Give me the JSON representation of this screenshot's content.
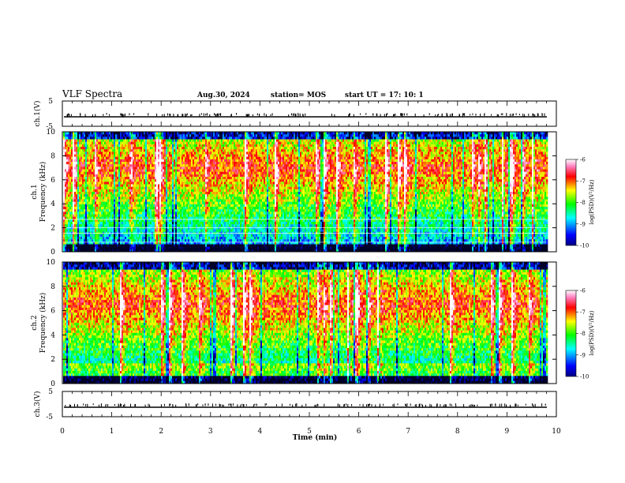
{
  "header": {
    "title": "VLF Spectra",
    "date": "Aug.30, 2024",
    "station": "station= MOS",
    "start_time": "start  UT  =    17: 10: 1"
  },
  "chart_data": [
    {
      "type": "line",
      "name": "ch1-voltage",
      "ylabel": "ch.1(V)",
      "ylim": [
        -5,
        5
      ],
      "yticks": [
        "5",
        "-5"
      ],
      "xlim": [
        0,
        10
      ],
      "value": 0
    },
    {
      "type": "heatmap",
      "name": "ch1-spectrogram",
      "ylabel": "ch.1\nFrequency (kHz)",
      "ylim": [
        0,
        10
      ],
      "yticks": [
        "0",
        "2",
        "4",
        "6",
        "8",
        "10"
      ],
      "xlim": [
        0,
        10
      ],
      "data_end_min": 9.8,
      "band_center_khz": 7.0,
      "colorbar": {
        "label": "log(PSD)(V²/Hz)",
        "range": [
          -10,
          -6
        ],
        "ticks": [
          "-6",
          "-7",
          "-8",
          "-9",
          "-10"
        ]
      }
    },
    {
      "type": "heatmap",
      "name": "ch2-spectrogram",
      "ylabel": "ch.2\nFrequency (kHz)",
      "ylim": [
        0,
        10
      ],
      "yticks": [
        "0",
        "2",
        "4",
        "6",
        "8",
        "10"
      ],
      "xlim": [
        0,
        10
      ],
      "data_end_min": 9.8,
      "band_center_khz": 6.5,
      "colorbar": {
        "label": "log(PSD)(V²/Hz)",
        "range": [
          -10,
          -6
        ],
        "ticks": [
          "-6",
          "-7",
          "-8",
          "-9",
          "-10"
        ]
      }
    },
    {
      "type": "line",
      "name": "ch3-voltage",
      "ylabel": "ch.3(V)",
      "ylim": [
        -5,
        5
      ],
      "yticks": [
        "5",
        "-5"
      ],
      "xlim": [
        0,
        10
      ],
      "value": 0
    }
  ],
  "xaxis": {
    "label": "Time  (min)",
    "ticks": [
      "0",
      "1",
      "2",
      "3",
      "4",
      "5",
      "6",
      "7",
      "8",
      "9",
      "10"
    ]
  }
}
